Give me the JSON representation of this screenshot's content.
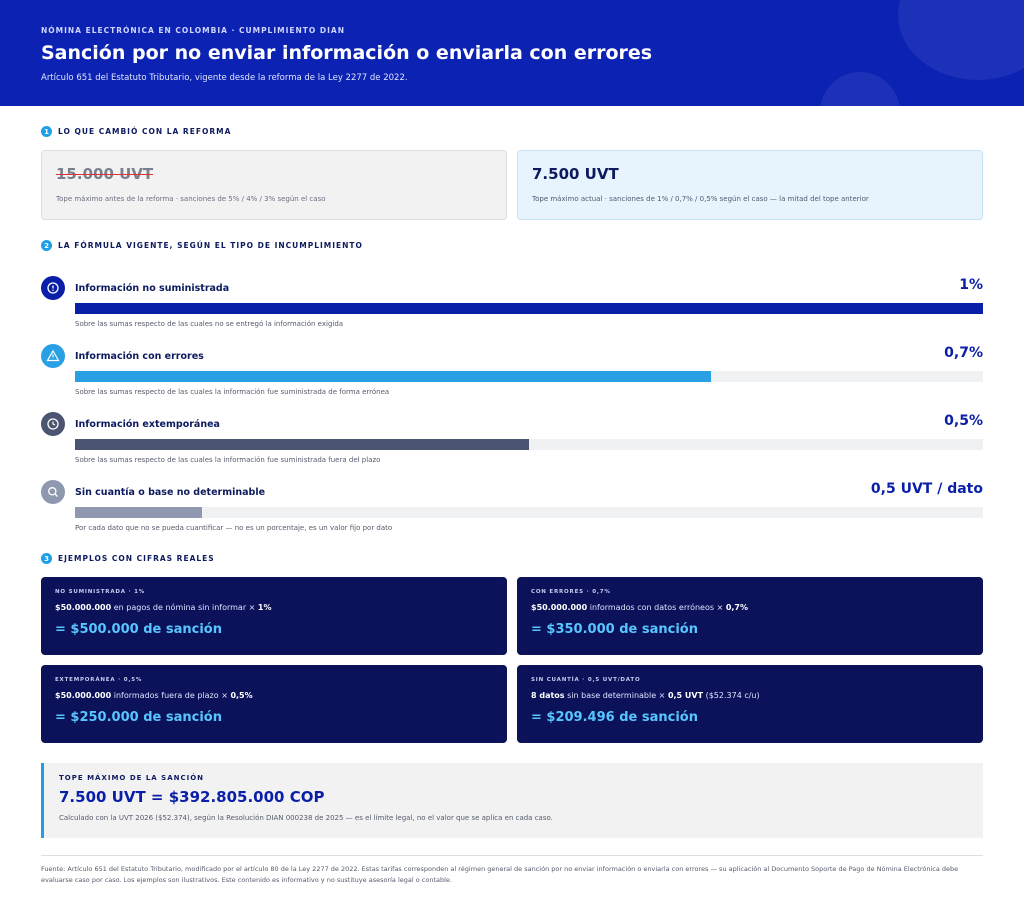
{
  "header": {
    "kicker": "NÓMINA ELECTRÓNICA EN COLOMBIA · CUMPLIMIENTO DIAN",
    "title": "Sanción por no enviar información o enviarla con errores",
    "subtitle": "Artículo 651 del Estatuto Tributario, vigente desde la reforma de la Ley 2277 de 2022."
  },
  "section1": {
    "number": "1",
    "label": "LO QUE CAMBIÓ CON LA REFORMA",
    "before": {
      "value": "15.000 UVT",
      "note": "Tope máximo antes de la reforma · sanciones de 5% / 4% / 3% según el caso"
    },
    "after": {
      "value": "7.500 UVT",
      "note": "Tope máximo actual · sanciones de 1% / 0,7% / 0,5% según el caso — la mitad del tope anterior"
    }
  },
  "section2": {
    "number": "2",
    "label": "LA FÓRMULA VIGENTE, SEGÚN EL TIPO DE INCUMPLIMIENTO",
    "bar_scale": [
      0,
      1
    ],
    "items": [
      {
        "title": "Información no suministrada",
        "rate": "1%",
        "bar_value": 1,
        "color": "#0a1fa8",
        "icon": "alert",
        "note": "Sobre las sumas respecto de las cuales no se entregó la información exigida"
      },
      {
        "title": "Información con errores",
        "rate": "0,7%",
        "bar_value": 0.7,
        "color": "#2aa0e4",
        "icon": "warn",
        "note": "Sobre las sumas respecto de las cuales la información fue suministrada de forma errónea"
      },
      {
        "title": "Información extemporánea",
        "rate": "0,5%",
        "bar_value": 0.5,
        "color": "#4b5470",
        "icon": "clock",
        "note": "Sobre las sumas respecto de las cuales la información fue suministrada fuera del plazo"
      },
      {
        "title": "Sin cuantía o base no determinable",
        "rate": "0,5 UVT / dato",
        "bar_value": 0.14,
        "color": "#8f98ae",
        "icon": "search",
        "note": "Por cada dato que no se pueda cuantificar — no es un porcentaje, es un valor fijo por dato"
      }
    ]
  },
  "section3": {
    "number": "3",
    "label": "EJEMPLOS CON CIFRAS REALES",
    "examples": [
      {
        "tag": "NO SUMINISTRADA · 1%",
        "line": [
          {
            "t": "$50.000.000",
            "b": true
          },
          {
            "t": " en pagos de nómina sin informar × "
          },
          {
            "t": "1%",
            "b": true
          }
        ],
        "result": "= $500.000 de sanción"
      },
      {
        "tag": "CON ERRORES · 0,7%",
        "line": [
          {
            "t": "$50.000.000",
            "b": true
          },
          {
            "t": " informados con datos erróneos × "
          },
          {
            "t": "0,7%",
            "b": true
          }
        ],
        "result": "= $350.000 de sanción"
      },
      {
        "tag": "EXTEMPORÁNEA · 0,5%",
        "line": [
          {
            "t": "$50.000.000",
            "b": true
          },
          {
            "t": " informados fuera de plazo × "
          },
          {
            "t": "0,5%",
            "b": true
          }
        ],
        "result": "= $250.000 de sanción"
      },
      {
        "tag": "SIN CUANTÍA · 0,5 UVT/DATO",
        "line": [
          {
            "t": "8 datos",
            "b": true
          },
          {
            "t": " sin base determinable × "
          },
          {
            "t": "0,5 UVT",
            "b": true
          },
          {
            "t": " ($52.374 c/u)"
          }
        ],
        "result": "= $209.496 de sanción"
      }
    ]
  },
  "cap": {
    "label": "TOPE MÁXIMO DE LA SANCIÓN",
    "value": "7.500 UVT = $392.805.000 COP",
    "note": "Calculado con la UVT 2026 ($52.374), según la Resolución DIAN 000238 de 2025 — es el límite legal, no el valor que se aplica en cada caso."
  },
  "footer": "Fuente: Artículo 651 del Estatuto Tributario, modificado por el artículo 80 de la Ley 2277 de 2022. Estas tarifas corresponden al régimen general de sanción por no enviar información o enviarla con errores — su aplicación al Documento Soporte de Pago de Nómina Electrónica debe evaluarse caso por caso. Los ejemplos son ilustrativos. Este contenido es informativo y no sustituye asesoría legal o contable."
}
